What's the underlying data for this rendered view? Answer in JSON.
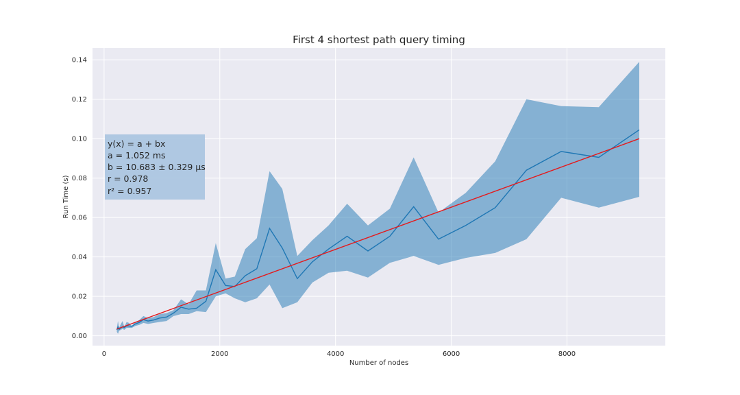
{
  "chart_data": {
    "type": "line",
    "title": "First 4 shortest path query timing",
    "xlabel": "Number of nodes",
    "ylabel": "Run Time (s)",
    "xlim": [
      -200,
      9700
    ],
    "ylim": [
      -0.005,
      0.146
    ],
    "xticks": [
      0,
      2000,
      4000,
      6000,
      8000
    ],
    "yticks": [
      0.0,
      0.02,
      0.04,
      0.06,
      0.08,
      0.1,
      0.12,
      0.14
    ],
    "x_tick_labels": [
      "0",
      "2000",
      "4000",
      "6000",
      "8000"
    ],
    "y_tick_labels": [
      "0.00",
      "0.02",
      "0.04",
      "0.06",
      "0.08",
      "0.10",
      "0.12",
      "0.14"
    ],
    "grid": true,
    "colors": {
      "background": "#eaeaf2",
      "grid": "#ffffff",
      "mean_line": "#1f77b4",
      "band": "#1f77b4",
      "fit_line": "#e41a1c",
      "annotation_box": "#a8c4e0"
    },
    "series": [
      {
        "kind": "band",
        "x": [
          220,
          240,
          260,
          290,
          320,
          350,
          390,
          430,
          480,
          540,
          610,
          680,
          760,
          860,
          960,
          1080,
          1200,
          1330,
          1460,
          1600,
          1760,
          1930,
          2100,
          2260,
          2440,
          2640,
          2860,
          3080,
          3340,
          3600,
          3880,
          4200,
          4560,
          4940,
          5350,
          5780,
          6250,
          6760,
          7300,
          7900,
          8550,
          9250
        ],
        "upper": [
          0.004,
          0.0075,
          0.004,
          0.006,
          0.0075,
          0.0045,
          0.007,
          0.0065,
          0.005,
          0.007,
          0.008,
          0.01,
          0.009,
          0.0095,
          0.011,
          0.0115,
          0.013,
          0.0185,
          0.016,
          0.023,
          0.023,
          0.047,
          0.029,
          0.03,
          0.044,
          0.0495,
          0.0835,
          0.0745,
          0.0405,
          0.0485,
          0.056,
          0.067,
          0.056,
          0.0645,
          0.0905,
          0.0625,
          0.0725,
          0.0885,
          0.12,
          0.1165,
          0.116,
          0.139
        ],
        "lower": [
          0.002,
          0.001,
          0.0025,
          0.003,
          0.0035,
          0.003,
          0.004,
          0.004,
          0.004,
          0.005,
          0.0055,
          0.0065,
          0.006,
          0.0065,
          0.007,
          0.0075,
          0.01,
          0.011,
          0.011,
          0.0125,
          0.012,
          0.02,
          0.0215,
          0.019,
          0.017,
          0.019,
          0.026,
          0.014,
          0.017,
          0.027,
          0.032,
          0.033,
          0.0295,
          0.037,
          0.0405,
          0.036,
          0.0395,
          0.042,
          0.049,
          0.07,
          0.065,
          0.0705
        ]
      },
      {
        "kind": "mean",
        "x": [
          220,
          240,
          260,
          290,
          320,
          350,
          390,
          430,
          480,
          540,
          610,
          680,
          760,
          860,
          960,
          1080,
          1200,
          1330,
          1460,
          1600,
          1760,
          1930,
          2100,
          2260,
          2440,
          2640,
          2860,
          3080,
          3340,
          3600,
          3880,
          4200,
          4560,
          4940,
          5350,
          5780,
          6250,
          6760,
          7300,
          7900,
          8550,
          9250
        ],
        "values": [
          0.003,
          0.0045,
          0.0032,
          0.004,
          0.0045,
          0.0042,
          0.005,
          0.005,
          0.0048,
          0.006,
          0.0068,
          0.0082,
          0.0075,
          0.008,
          0.009,
          0.0095,
          0.0115,
          0.0145,
          0.0135,
          0.014,
          0.0175,
          0.0335,
          0.0255,
          0.025,
          0.0305,
          0.034,
          0.0545,
          0.0445,
          0.029,
          0.0375,
          0.044,
          0.0505,
          0.043,
          0.0505,
          0.0655,
          0.049,
          0.056,
          0.065,
          0.084,
          0.0935,
          0.0905,
          0.1045
        ]
      },
      {
        "kind": "fit",
        "x": [
          220,
          9250
        ],
        "values": [
          0.003402,
          0.1
        ]
      }
    ],
    "annotation": {
      "line1": "y(x) = a + bx",
      "line2": "a = 1.052 ms",
      "line3": "b = 10.683 ± 0.329 μs",
      "line4": "r = 0.978",
      "line5": "r² = 0.957"
    }
  }
}
